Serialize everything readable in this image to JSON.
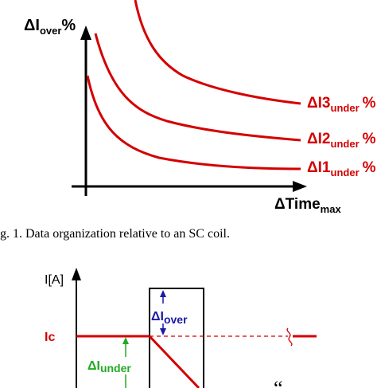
{
  "figure1": {
    "y_axis": {
      "main": "ΔI",
      "sub": "over",
      "suffix": "%"
    },
    "x_axis": {
      "main": "ΔTime",
      "sub": "max"
    },
    "curves": [
      {
        "main": "ΔI3",
        "sub": "under",
        "suffix": "%"
      },
      {
        "main": "ΔI2",
        "sub": "under",
        "suffix": "%"
      },
      {
        "main": "ΔI1",
        "sub": "under",
        "suffix": "%"
      }
    ],
    "caption": "g. 1.   Data organization relative to an SC coil."
  },
  "figure2": {
    "y_axis_label": "I[A]",
    "ic_label": "Ic",
    "delta_over": {
      "main": "ΔI",
      "sub": "over"
    },
    "delta_under": {
      "main": "ΔI",
      "sub": "under"
    },
    "quote_mark": "“"
  },
  "colors": {
    "curve": "#d40000",
    "over_arrow": "#1a1aa6",
    "under_arrow": "#22aa22",
    "ic_label": "#d40000",
    "axis": "#000000"
  }
}
